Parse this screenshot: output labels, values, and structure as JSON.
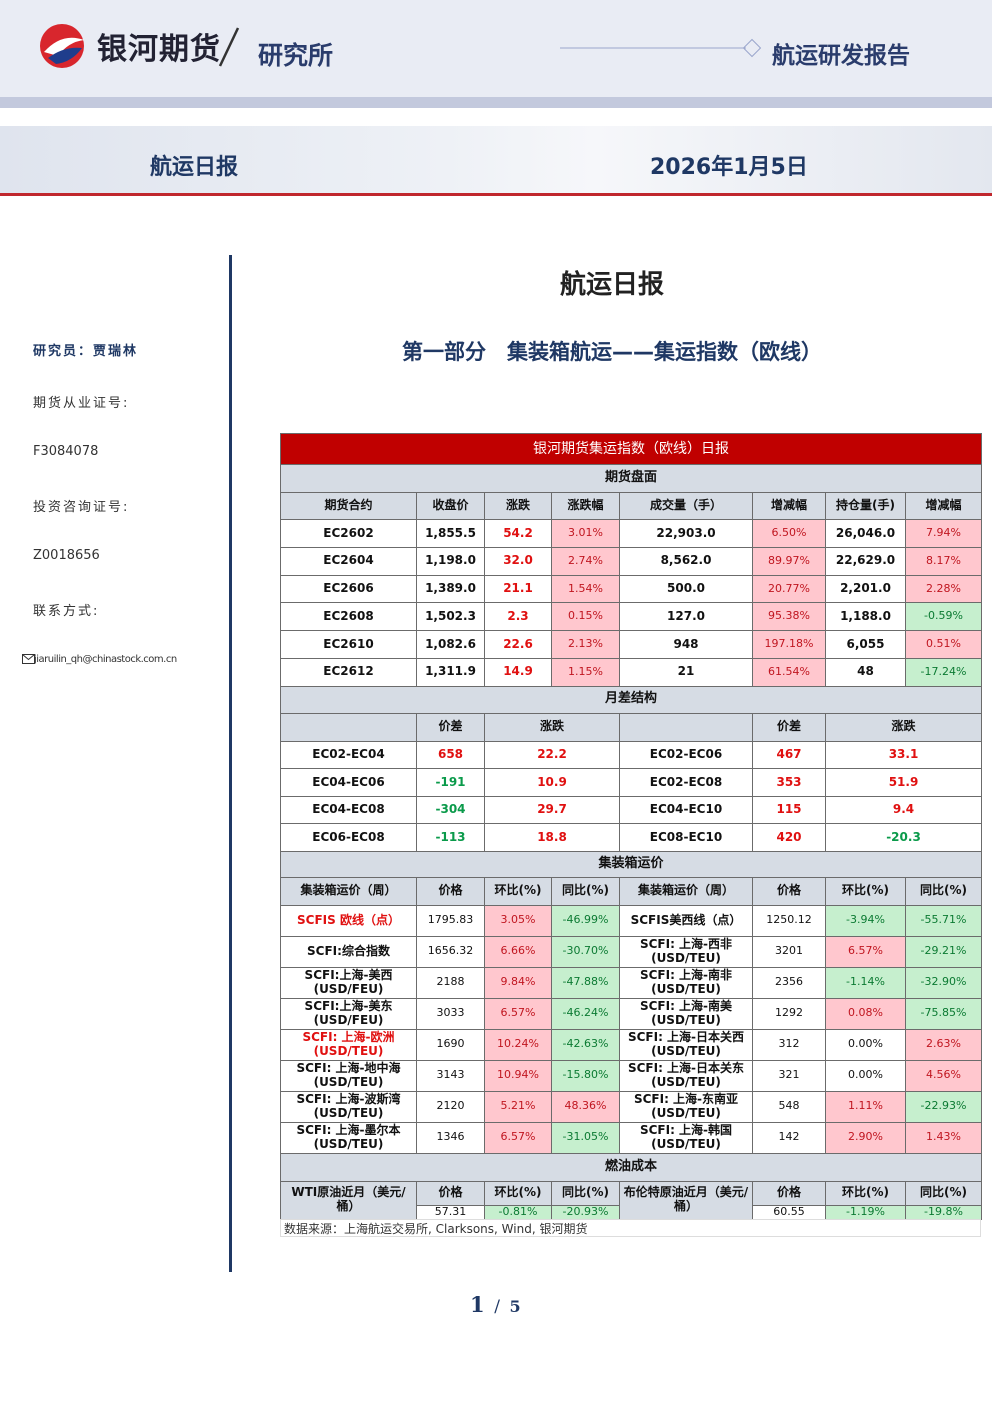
{
  "header": {
    "brand": "银河期货",
    "dept": "研究所",
    "report_type": "航运研发报告"
  },
  "banner": {
    "title": "航运日报",
    "date": "2026年1月5日"
  },
  "sidebar": {
    "researcher": "研究员：贾瑞林",
    "license_label": "期货从业证号:",
    "license": "F3084078",
    "consult_label": "投资咨询证号:",
    "consult": "Z0018656",
    "contact_label": "联系方式:",
    "email": "jiaruilin_qh@chinastock.com.cn"
  },
  "main_title": "航运日报",
  "section_title": "第一部分　集装箱航运——集运指数（欧线）",
  "table": {
    "title": "银河期货集运指数（欧线）日报",
    "futures": {
      "section": "期货盘面",
      "header": [
        "期货合约",
        "收盘价",
        "涨跌",
        "涨跌幅",
        "成交量（手）",
        "增减幅",
        "持仓量(手)",
        "增减幅"
      ],
      "rows": [
        [
          "EC2602",
          "1,855.5",
          {
            "text": "54.2",
            "tone": "red"
          },
          {
            "text": "3.01%",
            "tone": "pos"
          },
          "22,903.0",
          {
            "text": "6.50%",
            "tone": "pos"
          },
          "26,046.0",
          {
            "text": "7.94%",
            "tone": "pos"
          }
        ],
        [
          "EC2604",
          "1,198.0",
          {
            "text": "32.0",
            "tone": "red"
          },
          {
            "text": "2.74%",
            "tone": "pos"
          },
          "8,562.0",
          {
            "text": "89.97%",
            "tone": "pos"
          },
          "22,629.0",
          {
            "text": "8.17%",
            "tone": "pos"
          }
        ],
        [
          "EC2606",
          "1,389.0",
          {
            "text": "21.1",
            "tone": "red"
          },
          {
            "text": "1.54%",
            "tone": "pos"
          },
          "500.0",
          {
            "text": "20.77%",
            "tone": "pos"
          },
          "2,201.0",
          {
            "text": "2.28%",
            "tone": "pos"
          }
        ],
        [
          "EC2608",
          "1,502.3",
          {
            "text": "2.3",
            "tone": "red"
          },
          {
            "text": "0.15%",
            "tone": "pos"
          },
          "127.0",
          {
            "text": "95.38%",
            "tone": "pos"
          },
          "1,188.0",
          {
            "text": "-0.59%",
            "tone": "neg"
          }
        ],
        [
          "EC2610",
          "1,082.6",
          {
            "text": "22.6",
            "tone": "red"
          },
          {
            "text": "2.13%",
            "tone": "pos"
          },
          "948",
          {
            "text": "197.18%",
            "tone": "pos"
          },
          "6,055",
          {
            "text": "0.51%",
            "tone": "pos"
          }
        ],
        [
          "EC2612",
          "1,311.9",
          {
            "text": "14.9",
            "tone": "red"
          },
          {
            "text": "1.15%",
            "tone": "pos"
          },
          "21",
          {
            "text": "61.54%",
            "tone": "pos"
          },
          "48",
          {
            "text": "-17.24%",
            "tone": "neg"
          }
        ]
      ]
    },
    "spreads": {
      "section": "月差结构",
      "header": [
        "价差",
        "涨跌",
        "价差",
        "涨跌"
      ],
      "rows": [
        [
          "EC02-EC04",
          {
            "text": "658",
            "tone": "red"
          },
          {
            "text": "22.2",
            "tone": "red"
          },
          "EC02-EC06",
          {
            "text": "467",
            "tone": "red"
          },
          {
            "text": "33.1",
            "tone": "red"
          }
        ],
        [
          "EC04-EC06",
          {
            "text": "-191",
            "tone": "green"
          },
          {
            "text": "10.9",
            "tone": "red"
          },
          "EC02-EC08",
          {
            "text": "353",
            "tone": "red"
          },
          {
            "text": "51.9",
            "tone": "red"
          }
        ],
        [
          "EC04-EC08",
          {
            "text": "-304",
            "tone": "green"
          },
          {
            "text": "29.7",
            "tone": "red"
          },
          "EC04-EC10",
          {
            "text": "115",
            "tone": "red"
          },
          {
            "text": "9.4",
            "tone": "red"
          }
        ],
        [
          "EC06-EC08",
          {
            "text": "-113",
            "tone": "green"
          },
          {
            "text": "18.8",
            "tone": "red"
          },
          "EC08-EC10",
          {
            "text": "420",
            "tone": "red"
          },
          {
            "text": "-20.3",
            "tone": "green"
          }
        ]
      ]
    },
    "freight": {
      "section": "集装箱运价",
      "header": [
        "集装箱运价（周）",
        "价格",
        "环比(%)",
        "同比(%)",
        "集装箱运价（周）",
        "价格",
        "环比(%)",
        "同比(%)"
      ],
      "rows": [
        [
          {
            "text": "SCFIS 欧线（点）",
            "tone": "red"
          },
          "1795.83",
          {
            "text": "3.05%",
            "tone": "pos"
          },
          {
            "text": "-46.99%",
            "tone": "neg"
          },
          "SCFIS美西线（点）",
          "1250.12",
          {
            "text": "-3.94%",
            "tone": "neg"
          },
          {
            "text": "-55.71%",
            "tone": "neg"
          }
        ],
        [
          "SCFI:综合指数",
          "1656.32",
          {
            "text": "6.66%",
            "tone": "pos"
          },
          {
            "text": "-30.70%",
            "tone": "neg"
          },
          "SCFI: 上海-西非\n(USD/TEU)",
          "3201",
          {
            "text": "6.57%",
            "tone": "pos"
          },
          {
            "text": "-29.21%",
            "tone": "neg"
          }
        ],
        [
          "SCFI:上海-美西\n(USD/FEU)",
          "2188",
          {
            "text": "9.84%",
            "tone": "pos"
          },
          {
            "text": "-47.88%",
            "tone": "neg"
          },
          "SCFI: 上海-南非\n(USD/TEU)",
          "2356",
          {
            "text": "-1.14%",
            "tone": "neg"
          },
          {
            "text": "-32.90%",
            "tone": "neg"
          }
        ],
        [
          "SCFI:上海-美东\n(USD/FEU)",
          "3033",
          {
            "text": "6.57%",
            "tone": "pos"
          },
          {
            "text": "-46.24%",
            "tone": "neg"
          },
          "SCFI: 上海-南美\n(USD/TEU)",
          "1292",
          {
            "text": "0.08%",
            "tone": "pos"
          },
          {
            "text": "-75.85%",
            "tone": "neg"
          }
        ],
        [
          {
            "text": "SCFI: 上海-欧洲\n(USD/TEU)",
            "tone": "red"
          },
          "1690",
          {
            "text": "10.24%",
            "tone": "pos"
          },
          {
            "text": "-42.63%",
            "tone": "neg"
          },
          "SCFI: 上海-日本关西\n(USD/TEU)",
          "312",
          "0.00%",
          {
            "text": "2.63%",
            "tone": "pos"
          }
        ],
        [
          "SCFI: 上海-地中海\n(USD/TEU)",
          "3143",
          {
            "text": "10.94%",
            "tone": "pos"
          },
          {
            "text": "-15.80%",
            "tone": "neg"
          },
          "SCFI: 上海-日本关东\n(USD/TEU)",
          "321",
          "0.00%",
          {
            "text": "4.56%",
            "tone": "pos"
          }
        ],
        [
          "SCFI: 上海-波斯湾\n(USD/TEU)",
          "2120",
          {
            "text": "5.21%",
            "tone": "pos"
          },
          {
            "text": "48.36%",
            "tone": "pos"
          },
          "SCFI: 上海-东南亚\n(USD/TEU)",
          "548",
          {
            "text": "1.11%",
            "tone": "pos"
          },
          {
            "text": "-22.93%",
            "tone": "neg"
          }
        ],
        [
          "SCFI: 上海-墨尔本\n(USD/TEU)",
          "1346",
          {
            "text": "6.57%",
            "tone": "pos"
          },
          {
            "text": "-31.05%",
            "tone": "neg"
          },
          "SCFI: 上海-韩国\n(USD/TEU)",
          "142",
          {
            "text": "2.90%",
            "tone": "pos"
          },
          {
            "text": "1.43%",
            "tone": "pos"
          }
        ]
      ]
    },
    "fuel": {
      "section": "燃油成本",
      "header": [
        "WTI原油近月（美元/桶）",
        "价格",
        "环比(%)",
        "同比(%)",
        "布伦特原油近月（美元/桶）",
        "价格",
        "环比(%)",
        "同比(%)"
      ],
      "values": [
        "57.31",
        {
          "text": "-0.81%",
          "tone": "neg"
        },
        {
          "text": "-20.93%",
          "tone": "neg"
        },
        "60.55",
        {
          "text": "-1.19%",
          "tone": "neg"
        },
        {
          "text": "-19.8%",
          "tone": "neg"
        }
      ]
    }
  },
  "source": "数据来源：上海航运交易所, Clarksons, Wind, 银河期货",
  "page": {
    "current": "1",
    "sep": "/",
    "total": "5"
  }
}
